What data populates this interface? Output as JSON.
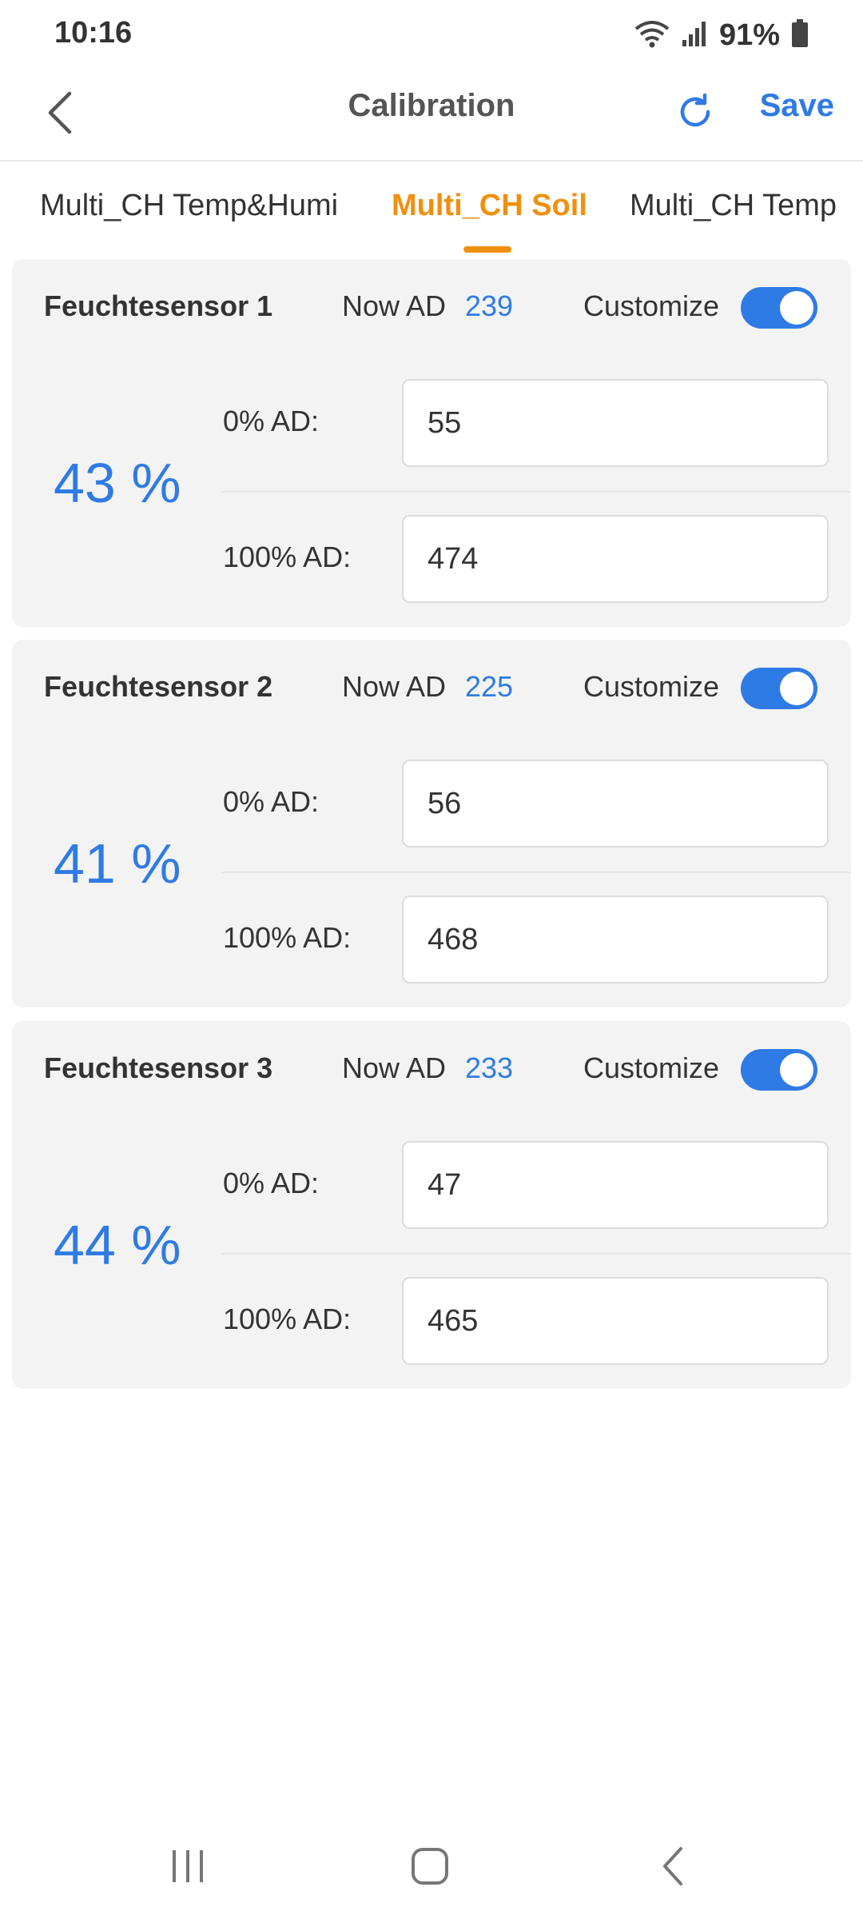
{
  "status_bar": {
    "time": "10:16",
    "battery_percent": "91%",
    "icons": [
      "wifi-icon",
      "signal-icon",
      "battery-icon"
    ]
  },
  "header": {
    "title": "Calibration",
    "save_label": "Save",
    "icons": [
      "back-chevron-icon",
      "refresh-icon"
    ]
  },
  "tabs": [
    {
      "label": "Multi_CH Temp&Humi",
      "active": false
    },
    {
      "label": "Multi_CH Soil",
      "active": true
    },
    {
      "label": "Multi_CH Temp",
      "active": false
    }
  ],
  "sensors": [
    {
      "name": "Feuchtesensor 1",
      "now_label": "Now AD",
      "now_value": "239",
      "customize_label": "Customize",
      "customize_on": true,
      "percent": "43 %",
      "zero_label": "0% AD:",
      "zero_value": "55",
      "hundred_label": "100% AD:",
      "hundred_value": "474"
    },
    {
      "name": "Feuchtesensor 2",
      "now_label": "Now AD",
      "now_value": "225",
      "customize_label": "Customize",
      "customize_on": true,
      "percent": "41 %",
      "zero_label": "0% AD:",
      "zero_value": "56",
      "hundred_label": "100% AD:",
      "hundred_value": "468"
    },
    {
      "name": "Feuchtesensor 3",
      "now_label": "Now AD",
      "now_value": "233",
      "customize_label": "Customize",
      "customize_on": true,
      "percent": "44 %",
      "zero_label": "0% AD:",
      "zero_value": "47",
      "hundred_label": "100% AD:",
      "hundred_value": "465"
    }
  ],
  "colors": {
    "accent_blue": "#2f7be5",
    "active_tab_orange": "#f0900f",
    "card_background": "#f3f3f3"
  },
  "nav_bar": {
    "icons": [
      "recent-apps-icon",
      "home-icon",
      "back-icon"
    ]
  }
}
